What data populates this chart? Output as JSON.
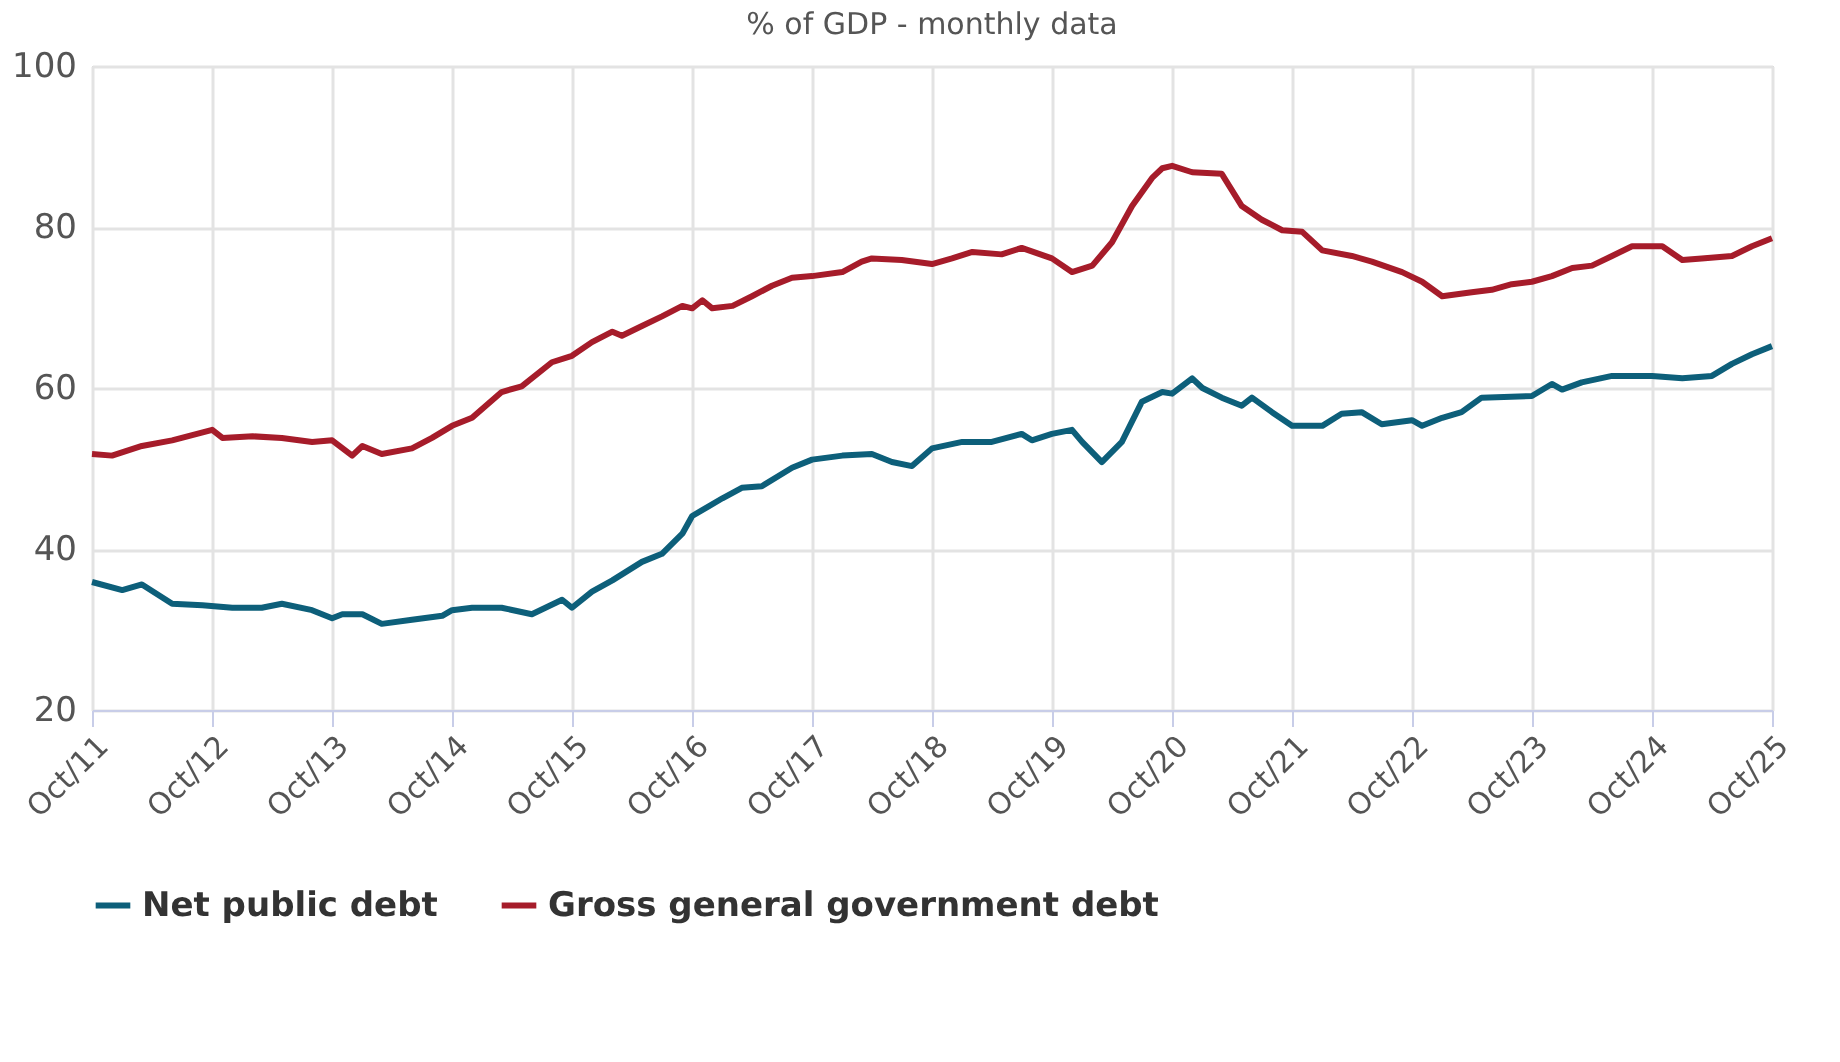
{
  "chart_data": {
    "type": "line",
    "title": "% of GDP - monthly data",
    "xlim": [
      "2011-10",
      "2025-10"
    ],
    "xticks": [
      {
        "value": "2011-10",
        "label": "Oct/11"
      },
      {
        "value": "2012-10",
        "label": "Oct/12"
      },
      {
        "value": "2013-10",
        "label": "Oct/13"
      },
      {
        "value": "2014-10",
        "label": "Oct/14"
      },
      {
        "value": "2015-10",
        "label": "Oct/15"
      },
      {
        "value": "2016-10",
        "label": "Oct/16"
      },
      {
        "value": "2017-10",
        "label": "Oct/17"
      },
      {
        "value": "2018-10",
        "label": "Oct/18"
      },
      {
        "value": "2019-10",
        "label": "Oct/19"
      },
      {
        "value": "2020-10",
        "label": "Oct/20"
      },
      {
        "value": "2021-10",
        "label": "Oct/21"
      },
      {
        "value": "2022-10",
        "label": "Oct/22"
      },
      {
        "value": "2023-10",
        "label": "Oct/23"
      },
      {
        "value": "2024-10",
        "label": "Oct/24"
      },
      {
        "value": "2025-10",
        "label": "Oct/25"
      }
    ],
    "ylim": [
      20,
      100
    ],
    "yticks": [
      20,
      40,
      60,
      80,
      100
    ],
    "grid": true,
    "legend": "bottom",
    "marker": "none",
    "line_style": "solid",
    "series": [
      {
        "name": "Net public debt",
        "color": "#0d5f7a",
        "x": [
          "2011-10",
          "2012-01",
          "2012-03",
          "2012-06",
          "2012-09",
          "2012-12",
          "2013-03",
          "2013-05",
          "2013-08",
          "2013-10",
          "2013-11",
          "2014-01",
          "2014-03",
          "2014-06",
          "2014-09",
          "2014-10",
          "2014-12",
          "2015-03",
          "2015-06",
          "2015-09",
          "2015-10",
          "2015-12",
          "2016-02",
          "2016-05",
          "2016-07",
          "2016-09",
          "2016-10",
          "2017-01",
          "2017-03",
          "2017-05",
          "2017-08",
          "2017-10",
          "2018-01",
          "2018-04",
          "2018-06",
          "2018-08",
          "2018-10",
          "2019-01",
          "2019-04",
          "2019-07",
          "2019-08",
          "2019-10",
          "2019-12",
          "2020-01",
          "2020-03",
          "2020-05",
          "2020-07",
          "2020-09",
          "2020-10",
          "2020-12",
          "2021-01",
          "2021-03",
          "2021-05",
          "2021-06",
          "2021-08",
          "2021-10",
          "2022-01",
          "2022-03",
          "2022-05",
          "2022-07",
          "2022-10",
          "2022-11",
          "2023-01",
          "2023-03",
          "2023-05",
          "2023-10",
          "2023-12",
          "2024-01",
          "2024-03",
          "2024-06",
          "2024-10",
          "2025-01",
          "2025-04",
          "2025-06",
          "2025-08",
          "2025-10"
        ],
        "values": [
          35.9,
          34.9,
          35.6,
          33.2,
          33.0,
          32.7,
          32.7,
          33.2,
          32.4,
          31.4,
          31.9,
          31.9,
          30.7,
          31.2,
          31.7,
          32.4,
          32.7,
          32.7,
          31.9,
          33.7,
          32.7,
          34.7,
          36.1,
          38.4,
          39.4,
          41.9,
          44.1,
          46.3,
          47.6,
          47.8,
          50.1,
          51.1,
          51.6,
          51.8,
          50.8,
          50.3,
          52.5,
          53.3,
          53.3,
          54.3,
          53.5,
          54.3,
          54.8,
          53.3,
          50.8,
          53.3,
          58.3,
          59.5,
          59.3,
          61.2,
          60.0,
          58.8,
          57.8,
          58.8,
          57.0,
          55.3,
          55.3,
          56.8,
          57.0,
          55.5,
          56.0,
          55.3,
          56.3,
          57.0,
          58.8,
          59.0,
          60.5,
          59.8,
          60.7,
          61.5,
          61.5,
          61.2,
          61.5,
          63.0,
          64.2,
          65.2
        ]
      },
      {
        "name": "Gross general government debt",
        "color": "#a61c2a",
        "x": [
          "2011-10",
          "2011-12",
          "2012-03",
          "2012-06",
          "2012-10",
          "2012-11",
          "2013-02",
          "2013-05",
          "2013-08",
          "2013-10",
          "2013-12",
          "2014-01",
          "2014-03",
          "2014-06",
          "2014-08",
          "2014-10",
          "2014-12",
          "2015-03",
          "2015-05",
          "2015-08",
          "2015-10",
          "2015-12",
          "2016-02",
          "2016-03",
          "2016-05",
          "2016-07",
          "2016-09",
          "2016-10",
          "2016-11",
          "2016-12",
          "2017-02",
          "2017-04",
          "2017-06",
          "2017-08",
          "2017-10",
          "2018-01",
          "2018-03",
          "2018-04",
          "2018-07",
          "2018-10",
          "2018-12",
          "2019-02",
          "2019-05",
          "2019-07",
          "2019-10",
          "2019-12",
          "2020-02",
          "2020-04",
          "2020-06",
          "2020-08",
          "2020-09",
          "2020-10",
          "2020-12",
          "2021-03",
          "2021-05",
          "2021-07",
          "2021-09",
          "2021-11",
          "2022-01",
          "2022-04",
          "2022-06",
          "2022-09",
          "2022-11",
          "2023-01",
          "2023-04",
          "2023-06",
          "2023-08",
          "2023-10",
          "2023-12",
          "2024-02",
          "2024-04",
          "2024-06",
          "2024-08",
          "2024-11",
          "2025-01",
          "2025-03",
          "2025-06",
          "2025-08",
          "2025-10"
        ],
        "values": [
          51.8,
          51.6,
          52.8,
          53.5,
          54.8,
          53.8,
          54.0,
          53.8,
          53.3,
          53.5,
          51.6,
          52.8,
          51.8,
          52.5,
          53.8,
          55.3,
          56.3,
          59.5,
          60.2,
          63.2,
          64.0,
          65.7,
          67.0,
          66.5,
          67.7,
          68.9,
          70.2,
          69.9,
          70.9,
          69.9,
          70.2,
          71.4,
          72.7,
          73.7,
          73.9,
          74.4,
          75.7,
          76.1,
          75.9,
          75.4,
          76.1,
          76.9,
          76.6,
          77.4,
          76.1,
          74.4,
          75.2,
          78.1,
          82.6,
          86.1,
          87.3,
          87.6,
          86.8,
          86.6,
          82.6,
          80.9,
          79.6,
          79.4,
          77.1,
          76.4,
          75.7,
          74.4,
          73.2,
          71.4,
          71.9,
          72.2,
          72.9,
          73.2,
          73.9,
          74.9,
          75.2,
          76.4,
          77.6,
          77.6,
          75.9,
          76.1,
          76.4,
          77.6,
          78.6
        ]
      }
    ]
  }
}
